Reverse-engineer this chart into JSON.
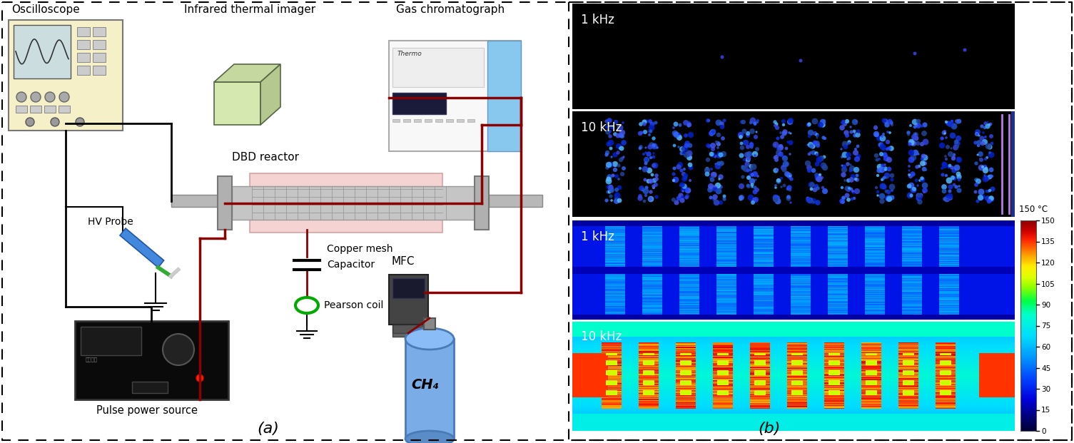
{
  "fig_width": 15.05,
  "fig_height": 6.21,
  "dpi": 100,
  "background_color": "#ffffff",
  "panel_a": {
    "label": "(a)",
    "title_left": "Oscilloscope",
    "title_mid": "Infrared thermal imager",
    "title_right": "Gas chromatograph",
    "labels": {
      "hv_probe": "HV Probe",
      "dbd_reactor": "DBD reactor",
      "copper_mesh": "Copper mesh",
      "capacitor": "Capacitor",
      "pearson_coil": "Pearson coil",
      "mfc": "MFC",
      "pulse_power": "Pulse power source",
      "ch4": "CH₄"
    }
  },
  "panel_b": {
    "label": "(b)",
    "labels": {
      "top1": "1 kHz",
      "top2": "10 kHz",
      "bot1": "1 kHz",
      "bot2": "10 kHz"
    },
    "colorbar_ticks": [
      0,
      15,
      30,
      45,
      60,
      75,
      90,
      105,
      120,
      135,
      150
    ],
    "colorbar_label": "150 °C"
  },
  "wire_color_dark": "#8B0000",
  "wire_color_black": "#000000",
  "green_color": "#00aa00",
  "oscilloscope_fill": "#f5f0c8"
}
